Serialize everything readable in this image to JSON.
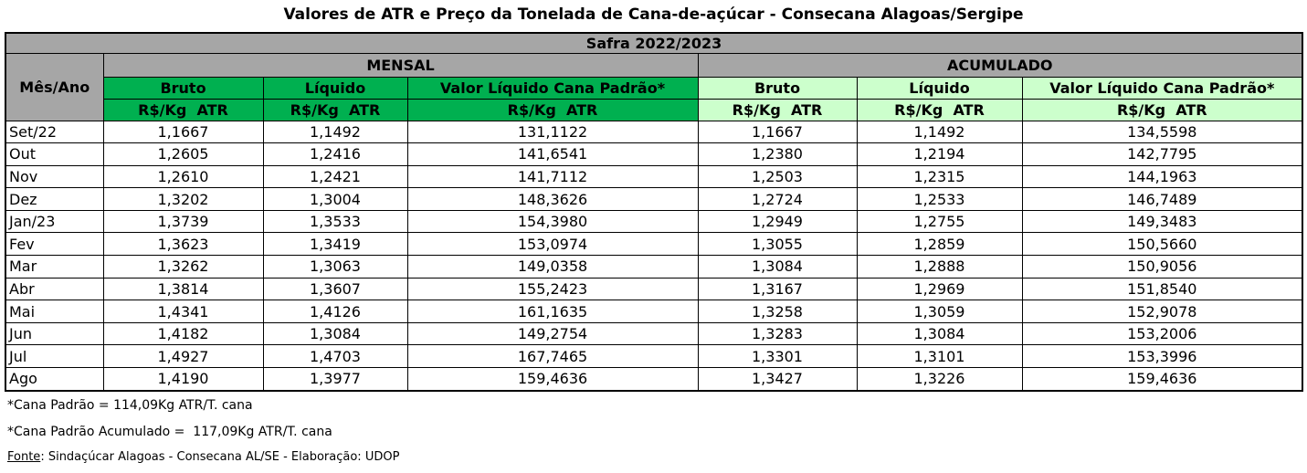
{
  "title": "Valores de ATR e Preço da Tonelada de Cana-de-açúcar - Consecana Alagoas/Sergipe",
  "table": {
    "safra": "Safra 2022/2023",
    "row_header": "Mês/Ano",
    "groups": [
      "MENSAL",
      "ACUMULADO"
    ],
    "columns": [
      "Bruto",
      "Líquido",
      "Valor Líquido Cana Padrão*",
      "Bruto",
      "Líquido",
      "Valor Líquido Cana Padrão*"
    ],
    "units": [
      "R$/Kg  ATR",
      "R$/Kg  ATR",
      "R$/Kg  ATR",
      "R$/Kg  ATR",
      "R$/Kg  ATR",
      "R$/Kg  ATR"
    ],
    "rows": [
      [
        "Set/22",
        "1,1667",
        "1,1492",
        "131,1122",
        "1,1667",
        "1,1492",
        "134,5598"
      ],
      [
        "Out",
        "1,2605",
        "1,2416",
        "141,6541",
        "1,2380",
        "1,2194",
        "142,7795"
      ],
      [
        "Nov",
        "1,2610",
        "1,2421",
        "141,7112",
        "1,2503",
        "1,2315",
        "144,1963"
      ],
      [
        "Dez",
        "1,3202",
        "1,3004",
        "148,3626",
        "1,2724",
        "1,2533",
        "146,7489"
      ],
      [
        "Jan/23",
        "1,3739",
        "1,3533",
        "154,3980",
        "1,2949",
        "1,2755",
        "149,3483"
      ],
      [
        "Fev",
        "1,3623",
        "1,3419",
        "153,0974",
        "1,3055",
        "1,2859",
        "150,5660"
      ],
      [
        "Mar",
        "1,3262",
        "1,3063",
        "149,0358",
        "1,3084",
        "1,2888",
        "150,9056"
      ],
      [
        "Abr",
        "1,3814",
        "1,3607",
        "155,2423",
        "1,3167",
        "1,2969",
        "151,8540"
      ],
      [
        "Mai",
        "1,4341",
        "1,4126",
        "161,1635",
        "1,3258",
        "1,3059",
        "152,9078"
      ],
      [
        "Jun",
        "1,4182",
        "1,3084",
        "149,2754",
        "1,3283",
        "1,3084",
        "153,2006"
      ],
      [
        "Jul",
        "1,4927",
        "1,4703",
        "167,7465",
        "1,3301",
        "1,3101",
        "153,3996"
      ],
      [
        "Ago",
        "1,4190",
        "1,3977",
        "159,4636",
        "1,3427",
        "1,3226",
        "159,4636"
      ]
    ]
  },
  "notes": [
    "*Cana Padrão = 114,09Kg ATR/T. cana",
    "*Cana Padrão Acumulado =  117,09Kg ATR/T. cana"
  ],
  "source": {
    "label": "Fonte",
    "text": ": Sindaçúcar Alagoas - Consecana AL/SE - Elaboração: UDOP"
  }
}
